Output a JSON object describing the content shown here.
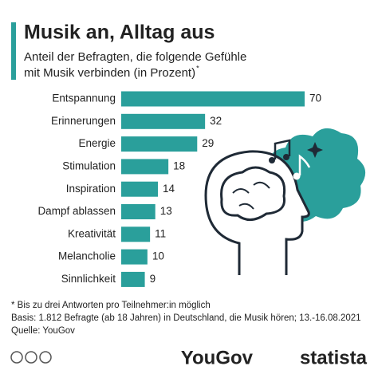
{
  "chart_data": {
    "type": "bar",
    "orientation": "horizontal",
    "title": "Musik an, Alltag aus",
    "subtitle_lines": [
      "Anteil der Befragten, die folgende Gefühle",
      "mit Musik verbinden (in Prozent)"
    ],
    "subtitle_marker": "*",
    "categories": [
      "Entspannung",
      "Erinnerungen",
      "Energie",
      "Stimulation",
      "Inspiration",
      "Dampf ablassen",
      "Kreativität",
      "Melancholie",
      "Sinnlichkeit"
    ],
    "values": [
      70,
      32,
      29,
      18,
      14,
      13,
      11,
      10,
      9
    ],
    "color": "#2a9f9b",
    "footnotes": [
      "* Bis zu drei Antworten pro Teilnehmer:in möglich",
      "Basis: 1.812 Befragte (ab 18 Jahren) in Deutschland, die Musik hören; 13.-16.08.2021",
      "Quelle: YouGov"
    ],
    "logos": [
      "YouGov",
      "statista"
    ]
  }
}
